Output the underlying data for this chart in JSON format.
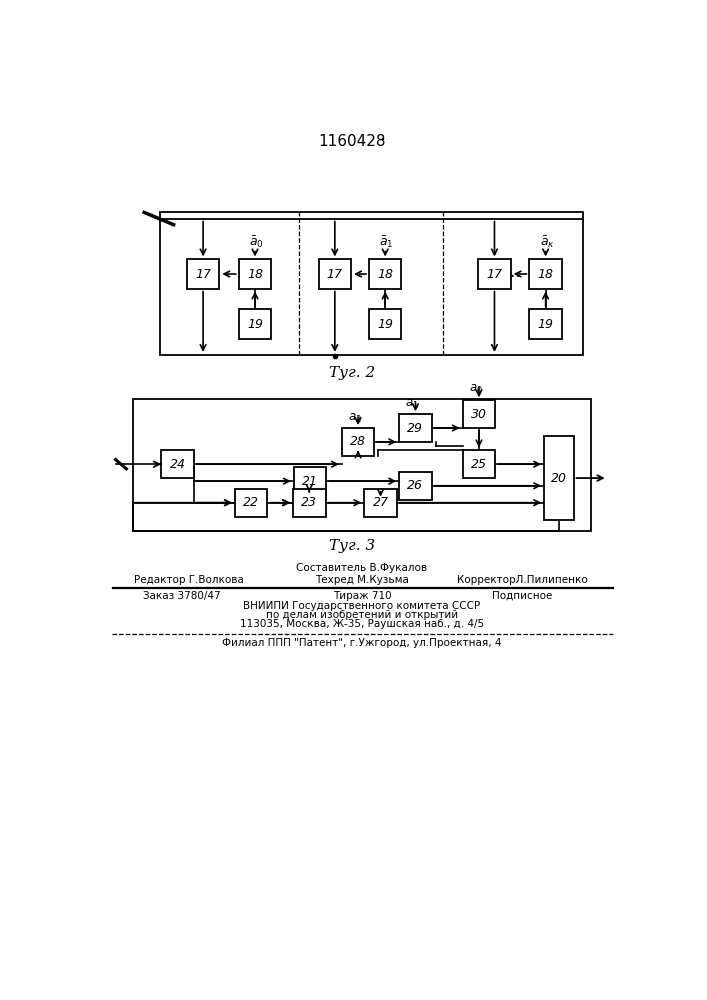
{
  "title": "1160428",
  "fig2_caption": "Τуг. 2",
  "fig3_caption": "Τуг. 3",
  "footer_line1": "Составитель В.Фукалов",
  "footer_line2_left": "Редактор Г.Волкова",
  "footer_line2_mid": "Техред М.Кузьма",
  "footer_line2_right": "КорректорЛ.Пилипенко",
  "footer_line3_left": "Заказ 3780/47",
  "footer_line3_mid": "Тираж 710",
  "footer_line3_right": "Подписное",
  "footer_line4": "ВНИИПИ Государственного комитета СССР",
  "footer_line5": "по делам изобретений и открытий",
  "footer_line6": "113035, Москва, Ж-35, Раушская наб., д. 4/5",
  "footer_line7": "Филиал ППП \"Патент\", г.Ужгород, ул.Проектная, 4"
}
